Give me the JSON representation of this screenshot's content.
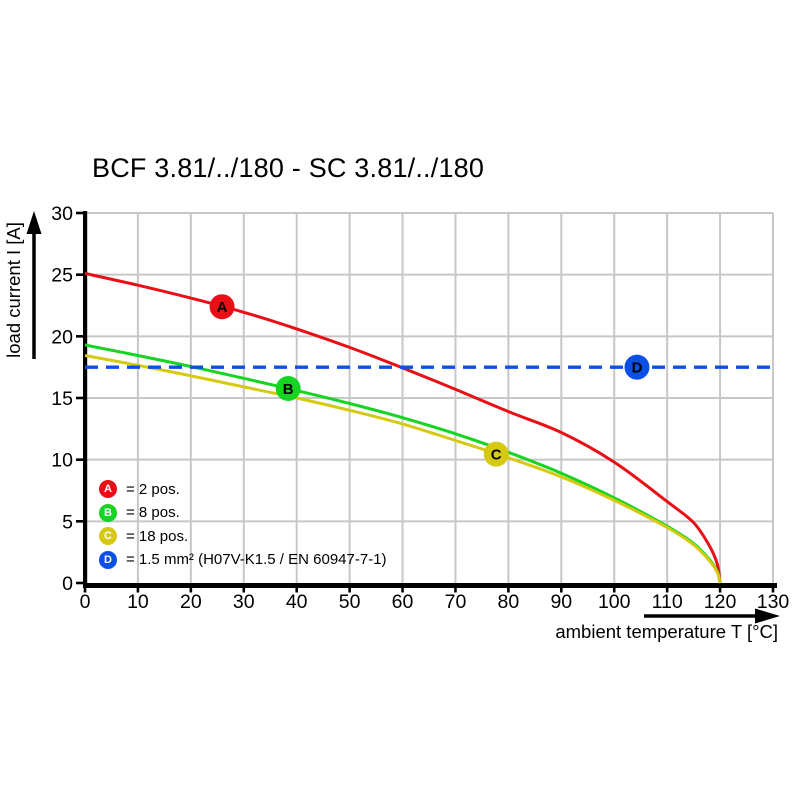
{
  "title": "BCF 3.81/../180 - SC 3.81/../180",
  "chart_data": {
    "type": "line",
    "title": "BCF 3.81/../180 - SC 3.81/../180",
    "xlabel": "ambient temperature T [°C]",
    "ylabel": "load current I [A]",
    "xlim": [
      0,
      130
    ],
    "ylim": [
      0,
      30
    ],
    "x_ticks": [
      0,
      10,
      20,
      30,
      40,
      50,
      60,
      70,
      80,
      90,
      100,
      110,
      120,
      130
    ],
    "y_ticks": [
      0,
      5,
      10,
      15,
      20,
      25,
      30
    ],
    "grid": true,
    "grid_color": "#c7c7c7",
    "axis_color": "#000000",
    "legend_position": "bottom-left",
    "series": [
      {
        "id": "A",
        "name": "2 pos.",
        "color": "#e81016",
        "style": "solid",
        "points": [
          [
            0,
            25.1
          ],
          [
            10,
            24.15
          ],
          [
            20,
            23.1
          ],
          [
            30,
            21.95
          ],
          [
            40,
            20.6
          ],
          [
            50,
            19.1
          ],
          [
            60,
            17.45
          ],
          [
            70,
            15.7
          ],
          [
            80,
            13.9
          ],
          [
            90,
            12.2
          ],
          [
            100,
            9.8
          ],
          [
            110,
            6.6
          ],
          [
            115,
            4.9
          ],
          [
            118,
            3.0
          ],
          [
            119.5,
            1.5
          ],
          [
            120,
            0
          ]
        ],
        "marker": {
          "label": "A",
          "t": 25.9,
          "i": 22.4
        }
      },
      {
        "id": "B",
        "name": "8 pos.",
        "color": "#16d422",
        "style": "solid",
        "points": [
          [
            0,
            19.3
          ],
          [
            10,
            18.45
          ],
          [
            20,
            17.55
          ],
          [
            30,
            16.6
          ],
          [
            40,
            15.6
          ],
          [
            50,
            14.55
          ],
          [
            60,
            13.4
          ],
          [
            70,
            12.1
          ],
          [
            80,
            10.6
          ],
          [
            90,
            8.9
          ],
          [
            100,
            6.9
          ],
          [
            110,
            4.6
          ],
          [
            115,
            3.2
          ],
          [
            118,
            1.9
          ],
          [
            119.5,
            0.9
          ],
          [
            120,
            0
          ]
        ],
        "marker": {
          "label": "B",
          "t": 38.4,
          "i": 15.77
        }
      },
      {
        "id": "C",
        "name": "18 pos.",
        "color": "#d6c912",
        "style": "solid",
        "points": [
          [
            0,
            18.45
          ],
          [
            10,
            17.65
          ],
          [
            20,
            16.8
          ],
          [
            30,
            15.9
          ],
          [
            40,
            15.0
          ],
          [
            50,
            14.0
          ],
          [
            60,
            12.9
          ],
          [
            70,
            11.55
          ],
          [
            80,
            10.15
          ],
          [
            90,
            8.6
          ],
          [
            100,
            6.7
          ],
          [
            110,
            4.5
          ],
          [
            115,
            3.1
          ],
          [
            118,
            1.8
          ],
          [
            119.5,
            0.85
          ],
          [
            120,
            0
          ]
        ],
        "marker": {
          "label": "C",
          "t": 77.7,
          "i": 10.45
        }
      },
      {
        "id": "D",
        "name": "1.5 mm² (H07V-K1.5 / EN 60947-7-1)",
        "color": "#0a50e6",
        "style": "dashed",
        "points": [
          [
            0,
            17.5
          ],
          [
            130,
            17.5
          ]
        ],
        "marker": {
          "label": "D",
          "t": 104.3,
          "i": 17.5
        }
      }
    ],
    "legend": {
      "items": [
        {
          "letter": "A",
          "series": "A",
          "label": "= 2 pos."
        },
        {
          "letter": "B",
          "series": "B",
          "label": "= 8 pos."
        },
        {
          "letter": "C",
          "series": "C",
          "label": "= 18 pos."
        },
        {
          "letter": "D",
          "series": "D",
          "label": "= 1.5 mm² (H07V-K1.5 / EN 60947-7-1)"
        }
      ]
    }
  }
}
